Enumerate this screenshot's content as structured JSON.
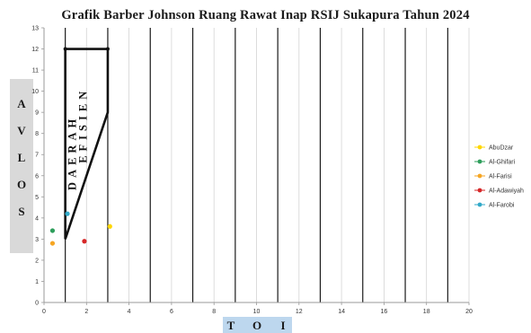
{
  "chart_data": {
    "type": "scatter",
    "title": "Grafik Barber Johnson Ruang Rawat Inap RSIJ Sukapura Tahun 2024",
    "ylabel": "AVLOS",
    "xlabel": "TOI",
    "xlim": [
      0,
      20
    ],
    "ylim": [
      0,
      13
    ],
    "x_ticks": [
      0,
      2,
      4,
      6,
      8,
      10,
      12,
      14,
      16,
      18,
      20
    ],
    "y_ticks": [
      0,
      1,
      2,
      3,
      4,
      5,
      6,
      7,
      8,
      9,
      10,
      11,
      12,
      13
    ],
    "y_tick_labels": [
      "0",
      "1",
      "2",
      "3",
      "4",
      "5",
      "6",
      "7",
      "8",
      "9",
      "10",
      "11",
      "12",
      "13"
    ],
    "grid": "vertical",
    "legend": "right",
    "series": [
      {
        "name": "AbuDzar",
        "color": "#ffd700",
        "points": [
          [
            3.1,
            3.6
          ]
        ]
      },
      {
        "name": "Al-Ghifari",
        "color": "#2e9e5b",
        "points": [
          [
            0.4,
            3.4
          ]
        ]
      },
      {
        "name": "Al-Farisi",
        "color": "#f6a623",
        "points": [
          [
            0.4,
            2.8
          ]
        ]
      },
      {
        "name": "Al-Adawiyah",
        "color": "#d62728",
        "points": [
          [
            1.9,
            2.9
          ]
        ]
      },
      {
        "name": "Al-Farobi",
        "color": "#31a9c8",
        "points": [
          [
            1.1,
            4.2
          ]
        ]
      }
    ],
    "efficiency_region": {
      "label_1": "DAERAH",
      "label_2": "EFISIEN",
      "vertices": [
        [
          1,
          12
        ],
        [
          3,
          12
        ],
        [
          3,
          9
        ],
        [
          1,
          3
        ],
        [
          1,
          12
        ]
      ]
    }
  }
}
